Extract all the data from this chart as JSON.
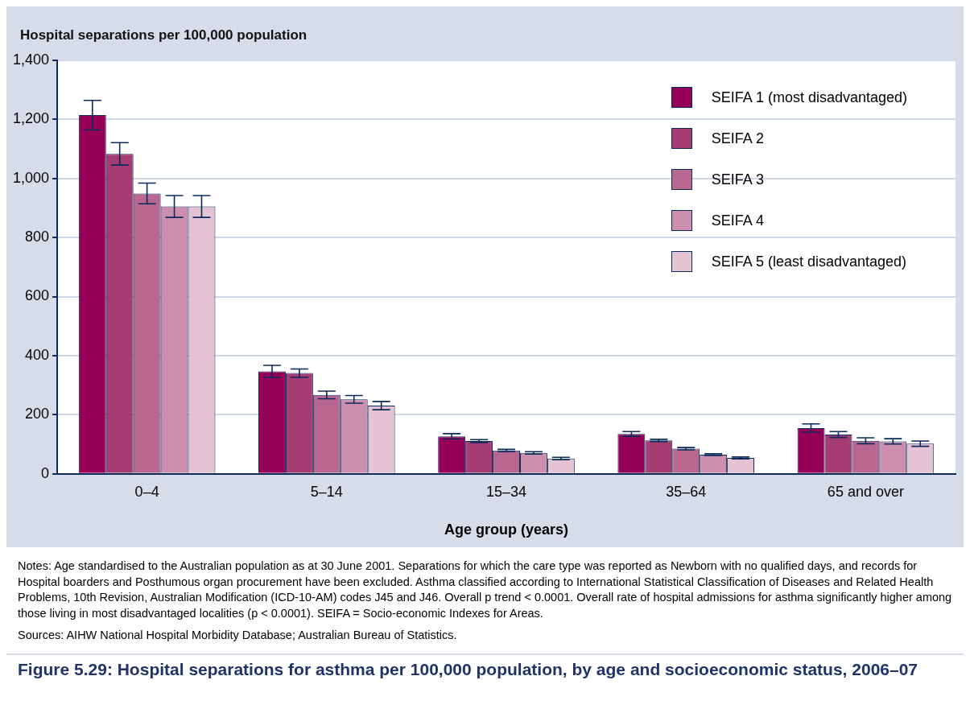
{
  "chart_data": {
    "type": "bar",
    "title": "Figure 5.29: Hospital separations for asthma per 100,000 population, by age and socioeconomic status, 2006–07",
    "xlabel": "Age group (years)",
    "ylabel": "Hospital separations per 100,000 population",
    "categories": [
      "0–4",
      "5–14",
      "15–34",
      "35–64",
      "65 and over"
    ],
    "series": [
      {
        "name": "SEIFA 1 (most disadvantaged)",
        "color": "#960056",
        "values": [
          1214,
          347,
          127,
          135,
          155
        ],
        "errors": [
          50,
          20,
          9,
          8,
          14
        ]
      },
      {
        "name": "SEIFA 2",
        "color": "#a63d72",
        "values": [
          1083,
          341,
          111,
          113,
          133
        ],
        "errors": [
          38,
          14,
          5,
          4,
          10
        ]
      },
      {
        "name": "SEIFA 3",
        "color": "#b8688e",
        "values": [
          949,
          267,
          79,
          85,
          112
        ],
        "errors": [
          35,
          13,
          4,
          4,
          10
        ]
      },
      {
        "name": "SEIFA 4",
        "color": "#cc90ae",
        "values": [
          905,
          252,
          71,
          65,
          110
        ],
        "errors": [
          37,
          13,
          4,
          3,
          9
        ]
      },
      {
        "name": "SEIFA 5 (least disadvantaged)",
        "color": "#e4c3d3",
        "values": [
          905,
          231,
          52,
          54,
          102
        ],
        "errors": [
          37,
          14,
          4,
          3,
          9
        ]
      }
    ],
    "ylim": [
      0,
      1400
    ],
    "yticks": [
      0,
      200,
      400,
      600,
      800,
      {
        "value": 1000,
        "label": "1,000"
      },
      {
        "value": 1200,
        "label": "1,200"
      },
      {
        "value": 1400,
        "label": "1,400"
      }
    ],
    "grid": "y",
    "legend": "top right",
    "annotations": [
      "Notes: Age standardised to the Australian population as at 30 June 2001. Separations for which the care type was reported as Newborn with no qualified days, and records for Hospital boarders and Posthumous organ procurement have been excluded. Asthma classified according to International Statistical Classification of Diseases and Related Health Problems, 10th Revision, Australian Modification (ICD-10-AM) codes J45 and J46. Overall p trend < 0.0001. Overall rate of hospital admissions for asthma significantly higher among those living in most disadvantaged localities (p < 0.0001). SEIFA = Socio-economic Indexes for Areas.",
      "Sources: AIHW National Hospital Morbidity Database; Australian Bureau of Statistics."
    ]
  }
}
